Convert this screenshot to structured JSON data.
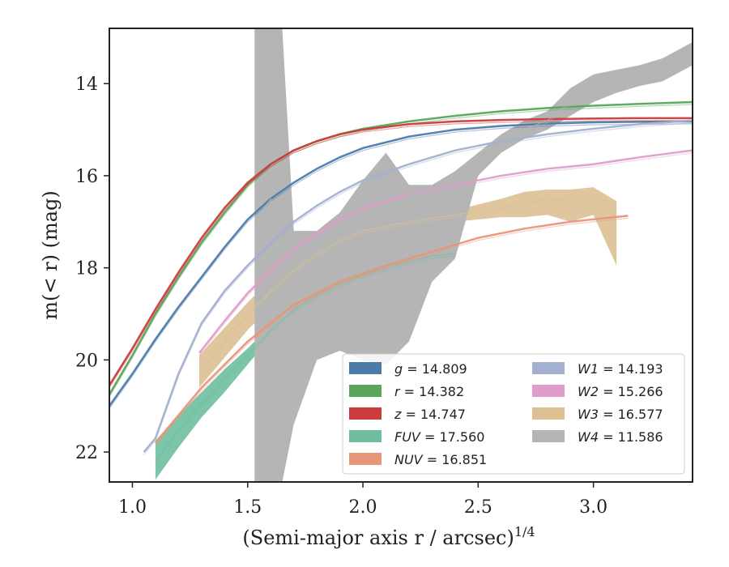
{
  "chart_data": {
    "type": "line",
    "xlabel": "(Semi-major axis r / arcsec)",
    "xlabel_sup": "1/4",
    "ylabel": "m(< r) (mag)",
    "xlim": [
      0.9,
      3.43
    ],
    "ylim": [
      22.65,
      12.8
    ],
    "y_inverted": true,
    "xticks": [
      1.0,
      1.5,
      2.0,
      2.5,
      3.0
    ],
    "xtick_labels": [
      "1.0",
      "1.5",
      "2.0",
      "2.5",
      "3.0"
    ],
    "yticks": [
      14,
      16,
      18,
      20,
      22
    ],
    "ytick_labels": [
      "14",
      "16",
      "18",
      "20",
      "22"
    ],
    "grid": false,
    "legend_position": "lower-right",
    "legend_columns": 2,
    "series": [
      {
        "name": "g",
        "label": "g = 14.809",
        "color": "#4c7bab",
        "x": [
          0.9,
          1.0,
          1.1,
          1.2,
          1.3,
          1.4,
          1.5,
          1.6,
          1.7,
          1.8,
          1.9,
          2.0,
          2.2,
          2.4,
          2.6,
          2.8,
          3.0,
          3.2,
          3.43
        ],
        "y": [
          21.0,
          20.3,
          19.55,
          18.85,
          18.2,
          17.55,
          16.95,
          16.5,
          16.15,
          15.85,
          15.6,
          15.4,
          15.15,
          15.0,
          14.92,
          14.87,
          14.84,
          14.83,
          14.82
        ]
      },
      {
        "name": "r",
        "label": "r = 14.382",
        "color": "#5aa55a",
        "x": [
          0.9,
          1.0,
          1.1,
          1.2,
          1.3,
          1.4,
          1.5,
          1.6,
          1.7,
          1.8,
          1.9,
          2.0,
          2.2,
          2.4,
          2.6,
          2.8,
          3.0,
          3.2,
          3.43
        ],
        "y": [
          20.75,
          19.9,
          19.0,
          18.2,
          17.45,
          16.8,
          16.2,
          15.75,
          15.45,
          15.25,
          15.1,
          14.98,
          14.82,
          14.7,
          14.6,
          14.53,
          14.48,
          14.44,
          14.4
        ]
      },
      {
        "name": "z",
        "label": "z = 14.747",
        "color": "#cc3b3b",
        "x": [
          0.9,
          1.0,
          1.1,
          1.2,
          1.3,
          1.4,
          1.5,
          1.6,
          1.7,
          1.8,
          1.9,
          2.0,
          2.2,
          2.4,
          2.6,
          2.8,
          3.0,
          3.2,
          3.43
        ],
        "y": [
          20.55,
          19.75,
          18.9,
          18.1,
          17.35,
          16.7,
          16.15,
          15.75,
          15.45,
          15.25,
          15.1,
          15.0,
          14.88,
          14.82,
          14.79,
          14.77,
          14.76,
          14.75,
          14.75
        ]
      },
      {
        "name": "FUV",
        "label": "FUV = 17.560",
        "color": "#6fbf9e",
        "x": [
          1.1,
          1.2,
          1.3,
          1.4,
          1.5,
          1.6,
          1.7,
          1.8,
          1.9,
          2.0,
          2.1,
          2.2,
          2.3,
          2.4
        ],
        "y": [
          22.2,
          21.5,
          20.95,
          20.4,
          19.9,
          19.35,
          18.9,
          18.6,
          18.35,
          18.15,
          18.0,
          17.85,
          17.75,
          17.68
        ],
        "band_lower": [
          22.6,
          21.9,
          21.25,
          20.7,
          20.1,
          19.5,
          19.05,
          18.72,
          18.45,
          18.25,
          18.08,
          17.92,
          17.8,
          17.7
        ],
        "band_upper": [
          21.75,
          21.2,
          20.7,
          20.2,
          19.75,
          19.25,
          18.8,
          18.5,
          18.27,
          18.08,
          17.93,
          17.8,
          17.7,
          17.62
        ]
      },
      {
        "name": "NUV",
        "label": "NUV = 16.851",
        "color": "#e8967a",
        "x": [
          1.1,
          1.3,
          1.5,
          1.7,
          1.9,
          2.1,
          2.3,
          2.5,
          2.7,
          2.9,
          3.15
        ],
        "y": [
          21.8,
          20.6,
          19.6,
          18.8,
          18.3,
          17.95,
          17.65,
          17.35,
          17.15,
          17.0,
          16.87
        ]
      },
      {
        "name": "W1",
        "label": "W1 = 14.193",
        "color": "#a4b0d0",
        "x": [
          1.05,
          1.1,
          1.2,
          1.3,
          1.4,
          1.5,
          1.6,
          1.7,
          1.8,
          1.9,
          2.0,
          2.2,
          2.4,
          2.6,
          2.8,
          3.0,
          3.2,
          3.43
        ],
        "y": [
          22.0,
          21.7,
          20.3,
          19.2,
          18.5,
          17.95,
          17.45,
          17.0,
          16.65,
          16.35,
          16.1,
          15.75,
          15.45,
          15.25,
          15.1,
          14.98,
          14.88,
          14.8
        ]
      },
      {
        "name": "W2",
        "label": "W2 = 15.266",
        "color": "#df9ec9",
        "x": [
          1.29,
          1.4,
          1.5,
          1.6,
          1.7,
          1.8,
          1.9,
          2.0,
          2.2,
          2.4,
          2.6,
          2.8,
          3.0,
          3.2,
          3.43
        ],
        "y": [
          19.85,
          19.15,
          18.55,
          18.05,
          17.6,
          17.25,
          16.95,
          16.7,
          16.4,
          16.2,
          16.0,
          15.85,
          15.75,
          15.6,
          15.45
        ]
      },
      {
        "name": "W3",
        "label": "W3 = 16.577",
        "color": "#dcc094",
        "x": [
          1.29,
          1.4,
          1.5,
          1.6,
          1.7,
          1.8,
          1.9,
          2.0,
          2.2,
          2.4,
          2.6,
          2.7,
          2.8,
          2.9,
          3.0,
          3.1
        ],
        "y": [
          20.3,
          19.6,
          19.0,
          18.5,
          18.05,
          17.7,
          17.4,
          17.2,
          17.0,
          16.85,
          16.7,
          16.6,
          16.5,
          16.55,
          16.45,
          16.6
        ],
        "band_lower": [
          20.6,
          19.95,
          19.35,
          18.85,
          18.35,
          17.95,
          17.6,
          17.35,
          17.1,
          17.0,
          16.9,
          16.9,
          16.85,
          17.0,
          16.85,
          17.95
        ],
        "band_upper": [
          19.9,
          19.3,
          18.75,
          18.25,
          17.8,
          17.5,
          17.2,
          17.05,
          16.9,
          16.75,
          16.5,
          16.35,
          16.3,
          16.3,
          16.25,
          16.55
        ]
      },
      {
        "name": "W4",
        "label": "W4 = 11.586",
        "color": "#b5b5b5",
        "x": [
          1.53,
          1.6,
          1.65,
          1.7,
          1.8,
          1.9,
          2.0,
          2.1,
          2.2,
          2.3,
          2.4,
          2.5,
          2.6,
          2.7,
          2.8,
          2.9,
          3.0,
          3.1,
          3.2,
          3.3,
          3.43
        ],
        "y": [
          17.0,
          16.5,
          17.5,
          17.7,
          17.5,
          17.0,
          16.6,
          16.2,
          16.4,
          16.3,
          16.1,
          15.7,
          15.3,
          15.0,
          14.8,
          14.4,
          14.1,
          14.0,
          13.85,
          13.7,
          13.35
        ],
        "band_lower": [
          22.65,
          22.65,
          22.65,
          21.4,
          20.0,
          19.8,
          20.0,
          20.1,
          19.6,
          18.3,
          17.8,
          16.0,
          15.5,
          15.2,
          15.0,
          14.7,
          14.4,
          14.2,
          14.05,
          13.95,
          13.6
        ],
        "band_upper": [
          12.8,
          12.8,
          12.8,
          17.2,
          17.2,
          16.8,
          16.1,
          15.5,
          16.2,
          16.2,
          15.9,
          15.5,
          15.1,
          14.8,
          14.6,
          14.1,
          13.8,
          13.7,
          13.6,
          13.45,
          13.1
        ]
      }
    ]
  }
}
